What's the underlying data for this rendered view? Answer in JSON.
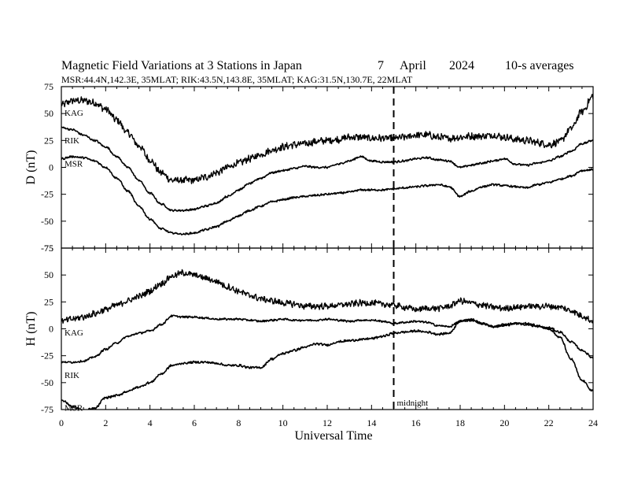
{
  "chart_data": {
    "type": "line",
    "title": "Magnetic Field Variations at 3 Stations in Japan",
    "date": {
      "day": "7",
      "month": "April",
      "year": "2024"
    },
    "averaging": "10-s averages",
    "stations_line": "MSR:44.4N,142.3E, 35MLAT;  RIK:43.5N,143.8E, 35MLAT;  KAG:31.5N,130.7E, 22MLAT",
    "xlabel": "Universal Time",
    "xlim": [
      0,
      24
    ],
    "xticks": [
      0,
      2,
      4,
      6,
      8,
      10,
      12,
      14,
      16,
      18,
      20,
      22,
      24
    ],
    "grid": false,
    "midnight": {
      "x": 15,
      "label": "midnight"
    },
    "panels": [
      {
        "id": "D",
        "ylabel": "D (nT)",
        "ylim": [
          -75,
          75
        ],
        "yticks": [
          75,
          50,
          25,
          0,
          -25,
          -50,
          -75
        ],
        "series": [
          {
            "name": "KAG",
            "label_shown": "KAG",
            "noise": 3.0,
            "x": [
              0,
              0.5,
              1,
              1.5,
              2,
              2.5,
              3,
              3.5,
              4,
              4.5,
              5,
              5.5,
              6,
              6.5,
              7,
              7.5,
              8,
              8.5,
              9,
              9.5,
              10,
              10.5,
              11,
              11.5,
              12,
              12.5,
              13,
              13.5,
              14,
              14.5,
              15,
              15.5,
              16,
              16.5,
              17,
              17.5,
              18,
              18.5,
              19,
              19.5,
              20,
              20.5,
              21,
              21.5,
              22,
              22.5,
              23,
              23.5,
              24
            ],
            "y": [
              58,
              62,
              62,
              60,
              54,
              44,
              32,
              20,
              7,
              -5,
              -12,
              -12,
              -12,
              -9,
              -5,
              0,
              4,
              8,
              12,
              16,
              19,
              21,
              22,
              24,
              25,
              26,
              28,
              28,
              27,
              27,
              27,
              28,
              30,
              30,
              28,
              27,
              28,
              29,
              29,
              30,
              28,
              26,
              25,
              23,
              21,
              24,
              36,
              52,
              66
            ]
          },
          {
            "name": "RIK",
            "label_shown": "RIK",
            "noise": 0.8,
            "x": [
              0,
              0.5,
              1,
              1.5,
              2,
              2.5,
              3,
              3.5,
              4,
              4.5,
              5,
              5.5,
              6,
              6.5,
              7,
              7.5,
              8,
              8.5,
              9,
              9.5,
              10,
              10.5,
              11,
              11.5,
              12,
              12.5,
              13,
              13.5,
              14,
              14.5,
              15,
              15.5,
              16,
              16.5,
              17,
              17.5,
              18,
              18.5,
              19,
              19.5,
              20,
              20.5,
              21,
              21.5,
              22,
              22.5,
              23,
              23.5,
              24
            ],
            "y": [
              37,
              35,
              30,
              25,
              19,
              10,
              0,
              -12,
              -24,
              -34,
              -40,
              -40,
              -39,
              -36,
              -33,
              -27,
              -21,
              -15,
              -10,
              -5,
              -3,
              -1,
              1,
              0,
              0,
              3,
              6,
              10,
              6,
              5,
              5,
              6,
              8,
              9,
              7,
              6,
              0,
              2,
              4,
              6,
              8,
              3,
              2,
              4,
              6,
              10,
              15,
              22,
              25
            ]
          },
          {
            "name": "MSR",
            "label_shown": "MSR",
            "noise": 0.8,
            "x": [
              0,
              0.5,
              1,
              1.5,
              2,
              2.5,
              3,
              3.5,
              4,
              4.5,
              5,
              5.5,
              6,
              6.5,
              7,
              7.5,
              8,
              8.5,
              9,
              9.5,
              10,
              10.5,
              11,
              11.5,
              12,
              12.5,
              13,
              13.5,
              14,
              14.5,
              15,
              15.5,
              16,
              16.5,
              17,
              17.5,
              18,
              18.5,
              19,
              19.5,
              20,
              20.5,
              21,
              21.5,
              22,
              22.5,
              23,
              23.5,
              24
            ],
            "y": [
              8,
              10,
              9,
              6,
              0,
              -10,
              -22,
              -36,
              -48,
              -57,
              -61,
              -62,
              -61,
              -58,
              -55,
              -50,
              -45,
              -40,
              -36,
              -32,
              -30,
              -28,
              -27,
              -26,
              -25,
              -24,
              -23,
              -21,
              -21,
              -21,
              -20,
              -19,
              -18,
              -17,
              -16,
              -18,
              -27,
              -22,
              -18,
              -16,
              -17,
              -18,
              -19,
              -16,
              -14,
              -11,
              -8,
              -3,
              -2
            ]
          }
        ]
      },
      {
        "id": "H",
        "ylabel": "H (nT)",
        "ylim": [
          -75,
          75
        ],
        "yticks": [
          75,
          50,
          25,
          0,
          -25,
          -50,
          -75
        ],
        "series": [
          {
            "name": "KAG",
            "label_shown": "KAG",
            "noise": 2.6,
            "x": [
              0,
              0.5,
              1,
              1.5,
              2,
              2.5,
              3,
              3.5,
              4,
              4.5,
              5,
              5.5,
              6,
              6.5,
              7,
              7.5,
              8,
              8.5,
              9,
              9.5,
              10,
              10.5,
              11,
              11.5,
              12,
              12.5,
              13,
              13.5,
              14,
              14.5,
              15,
              15.5,
              16,
              16.5,
              17,
              17.5,
              18,
              18.5,
              19,
              19.5,
              20,
              20.5,
              21,
              21.5,
              22,
              22.5,
              23,
              23.5,
              24
            ],
            "y": [
              7,
              9,
              11,
              14,
              18,
              22,
              26,
              30,
              35,
              42,
              49,
              52,
              50,
              47,
              44,
              39,
              35,
              31,
              28,
              26,
              24,
              23,
              21,
              21,
              21,
              22,
              23,
              24,
              24,
              23,
              22,
              20,
              18,
              19,
              19,
              21,
              26,
              24,
              22,
              20,
              19,
              20,
              21,
              21,
              21,
              20,
              17,
              12,
              7
            ]
          },
          {
            "name": "RIK",
            "label_shown": "RIK",
            "noise": 0.8,
            "x": [
              0,
              0.5,
              1,
              1.5,
              2,
              2.5,
              3,
              3.5,
              4,
              4.5,
              5,
              5.5,
              6,
              6.5,
              7,
              7.5,
              8,
              8.5,
              9,
              9.5,
              10,
              10.5,
              11,
              11.5,
              12,
              12.5,
              13,
              13.5,
              14,
              14.5,
              15,
              15.5,
              16,
              16.5,
              17,
              17.5,
              18,
              18.5,
              19,
              19.5,
              20,
              20.5,
              21,
              21.5,
              22,
              22.5,
              23,
              23.5,
              24
            ],
            "y": [
              -31,
              -31,
              -30,
              -26,
              -19,
              -13,
              -7,
              -4,
              -2,
              4,
              12,
              11,
              11,
              10,
              9,
              9,
              9,
              8,
              7,
              8,
              9,
              8,
              8,
              8,
              9,
              8,
              7,
              8,
              8,
              7,
              5,
              6,
              7,
              6,
              3,
              2,
              7,
              9,
              5,
              2,
              3,
              5,
              4,
              2,
              1,
              -3,
              -12,
              -20,
              -27
            ]
          },
          {
            "name": "MSR",
            "label_shown": "MSR",
            "noise": 0.9,
            "x": [
              0,
              0.5,
              1,
              1.5,
              2,
              2.5,
              3,
              3.5,
              4,
              4.5,
              5,
              5.5,
              6,
              6.5,
              7,
              7.5,
              8,
              8.5,
              9,
              9.5,
              10,
              10.5,
              11,
              11.5,
              12,
              12.5,
              13,
              13.5,
              14,
              14.5,
              15,
              15.5,
              16,
              16.5,
              17,
              17.5,
              18,
              18.5,
              19,
              19.5,
              20,
              20.5,
              21,
              21.5,
              22,
              22.5,
              23,
              23.5,
              24
            ],
            "y": [
              -66,
              -72,
              -76,
              -74,
              -64,
              -62,
              -58,
              -54,
              -50,
              -42,
              -34,
              -32,
              -31,
              -31,
              -32,
              -34,
              -34,
              -36,
              -36,
              -28,
              -23,
              -20,
              -17,
              -14,
              -15,
              -12,
              -11,
              -10,
              -9,
              -7,
              -4,
              -3,
              -2,
              -3,
              -5,
              -4,
              7,
              8,
              5,
              2,
              4,
              5,
              5,
              3,
              0,
              -8,
              -28,
              -48,
              -58
            ]
          }
        ]
      }
    ]
  }
}
